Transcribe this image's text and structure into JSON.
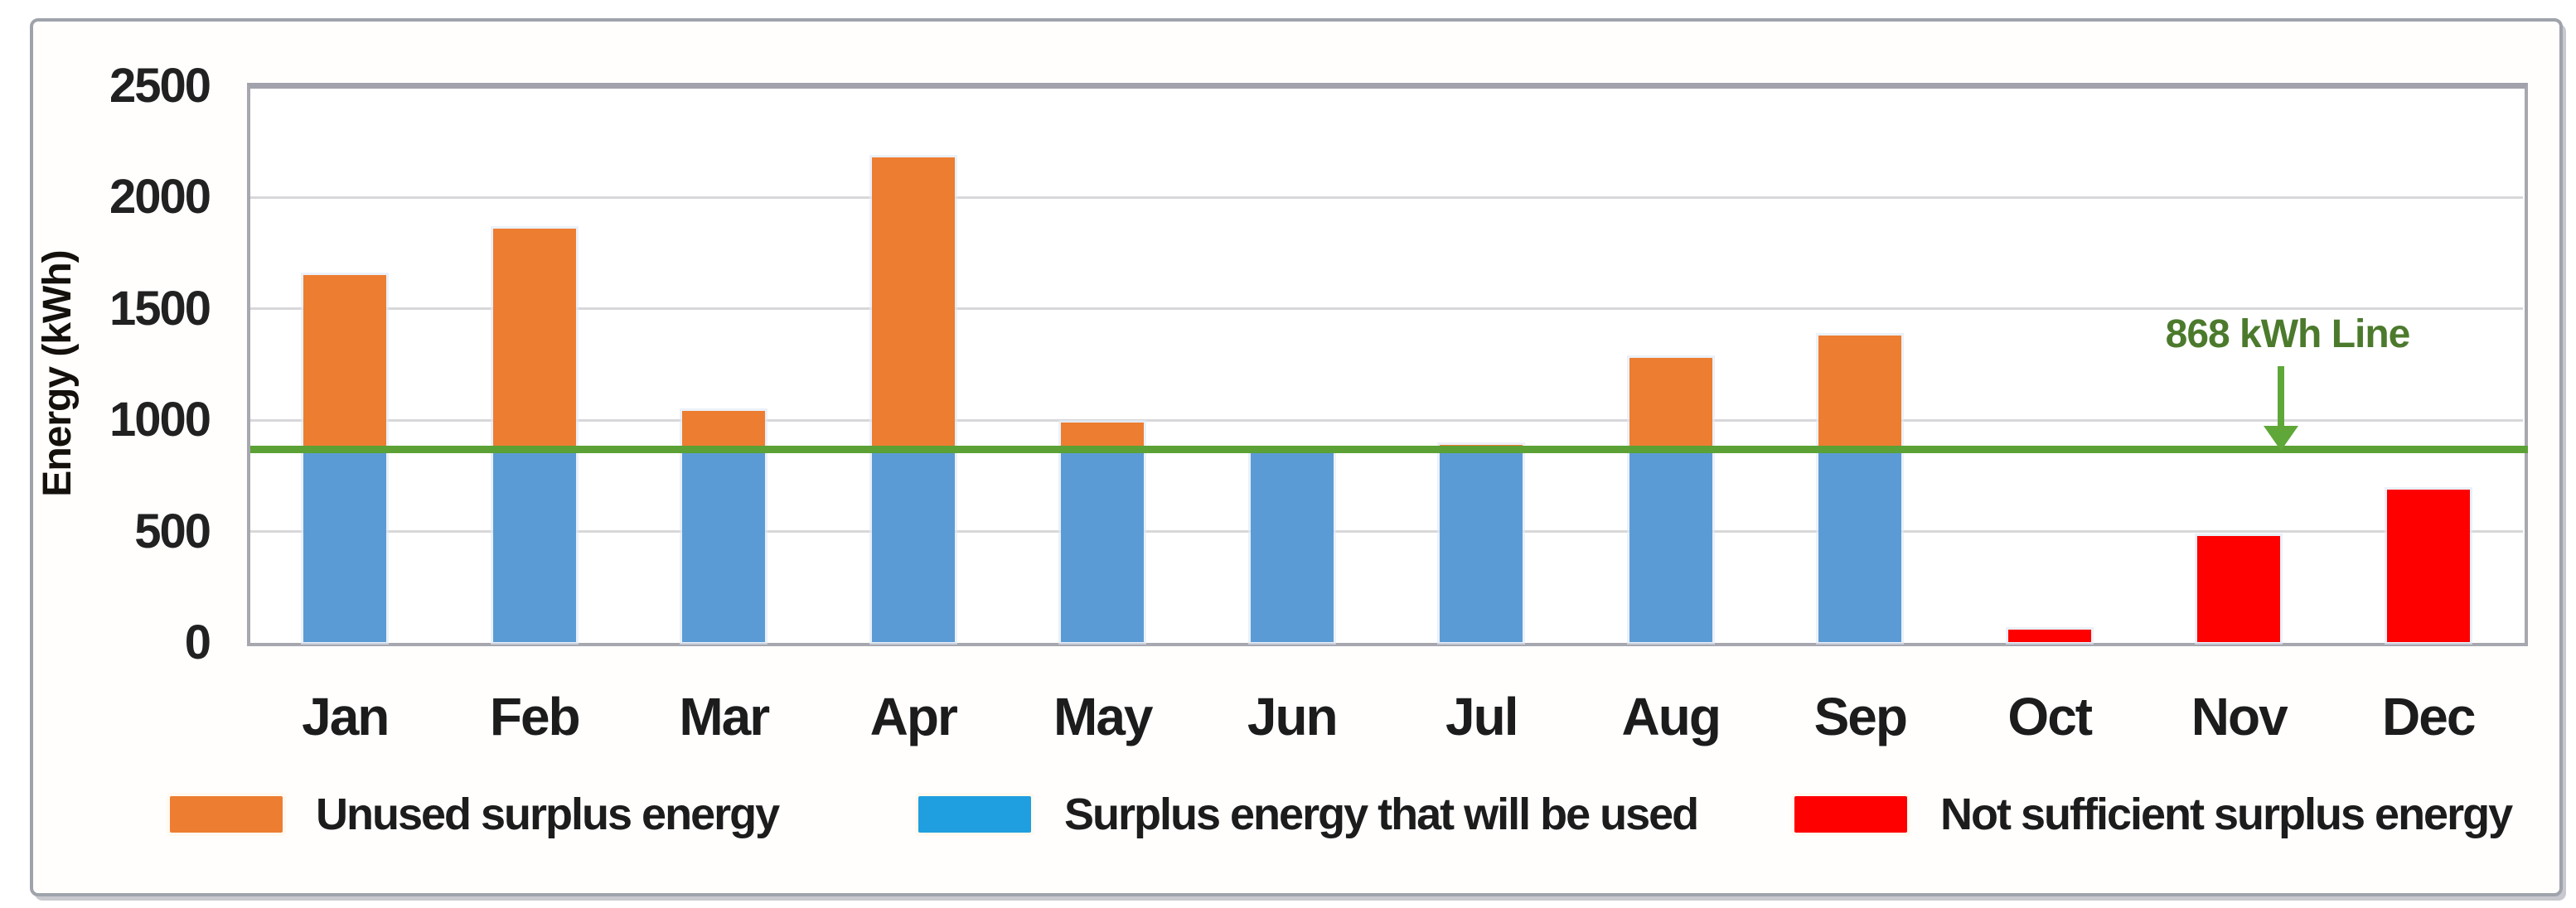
{
  "figure": {
    "ylabel": "Energy (kWh)",
    "background": "#ffffff",
    "frame_color": "#9fa3ab"
  },
  "legend": {
    "position": "bottom",
    "items": [
      {
        "label": "Unused surplus energy",
        "color": "#ed7d31"
      },
      {
        "label": "Surplus energy that will be used",
        "color": "#1f9fdf"
      },
      {
        "label": "Not sufficient surplus energy",
        "color": "#fe0000"
      }
    ]
  },
  "annotation": {
    "text": "868 kWh Line",
    "text_color": "#4c7a2d",
    "arrow_color": "#5fa738"
  },
  "chart_data": {
    "type": "bar",
    "stacked": true,
    "categories": [
      "Jan",
      "Feb",
      "Mar",
      "Apr",
      "May",
      "Jun",
      "Jul",
      "Aug",
      "Sep",
      "Oct",
      "Nov",
      "Dec"
    ],
    "series": [
      {
        "name": "Surplus energy that will be used",
        "color": "#5b9bd5",
        "values": [
          868,
          868,
          868,
          868,
          868,
          860,
          868,
          868,
          868,
          0,
          0,
          0
        ]
      },
      {
        "name": "Unused surplus energy",
        "color": "#ed7d31",
        "values": [
          782,
          992,
          172,
          1312,
          122,
          0,
          22,
          412,
          512,
          0,
          0,
          0
        ]
      },
      {
        "name": "Not sufficient surplus energy",
        "color": "#fe0000",
        "values": [
          0,
          0,
          0,
          0,
          0,
          0,
          0,
          0,
          0,
          60,
          480,
          690
        ]
      }
    ],
    "reference_line": {
      "value": 868,
      "label": "868 kWh Line",
      "color": "#5ba135"
    },
    "ylabel": "Energy (kWh)",
    "yticks": [
      0,
      500,
      1000,
      1500,
      2000,
      2500
    ],
    "ylim": [
      0,
      2500
    ],
    "grid": true,
    "legend_position": "bottom"
  }
}
